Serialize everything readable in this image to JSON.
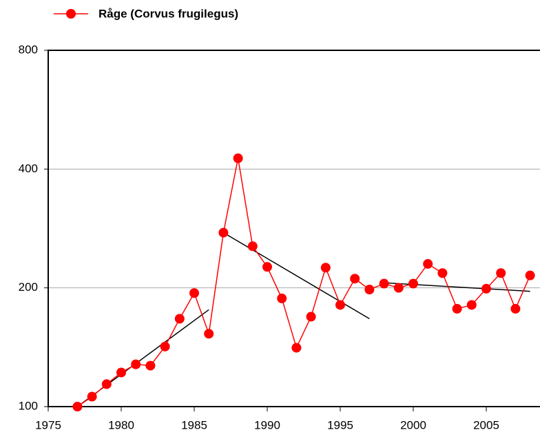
{
  "chart_data": {
    "type": "line",
    "x": [
      1977,
      1978,
      1979,
      1980,
      1981,
      1982,
      1983,
      1984,
      1985,
      1986,
      1987,
      1988,
      1989,
      1990,
      1991,
      1992,
      1993,
      1994,
      1995,
      1996,
      1997,
      1998,
      1999,
      2000,
      2001,
      2002,
      2003,
      2004,
      2005,
      2006,
      2007,
      2008
    ],
    "series": [
      {
        "name": "Råge (Corvus frugilegus)",
        "color": "#ff0000",
        "values": [
          100,
          106,
          114,
          122,
          128,
          127,
          142,
          167,
          194,
          153,
          276,
          426,
          255,
          226,
          188,
          141,
          169,
          225,
          181,
          211,
          198,
          205,
          200,
          205,
          230,
          218,
          177,
          181,
          199,
          218,
          177,
          215
        ]
      }
    ],
    "trend_lines": [
      {
        "x": [
          1977,
          1986
        ],
        "values": [
          100,
          176
        ],
        "color": "#000000"
      },
      {
        "x": [
          1987,
          1997
        ],
        "values": [
          276,
          167
        ],
        "color": "#000000"
      },
      {
        "x": [
          1998,
          2008
        ],
        "values": [
          206,
          196
        ],
        "color": "#000000"
      }
    ],
    "xlim": [
      1975,
      2010
    ],
    "xticks": [
      1975,
      1980,
      1985,
      1990,
      1995,
      2000,
      2005
    ],
    "ylim": [
      100,
      800
    ],
    "yticks": [
      100,
      200,
      400,
      800
    ],
    "log_y": true,
    "grid": true
  }
}
